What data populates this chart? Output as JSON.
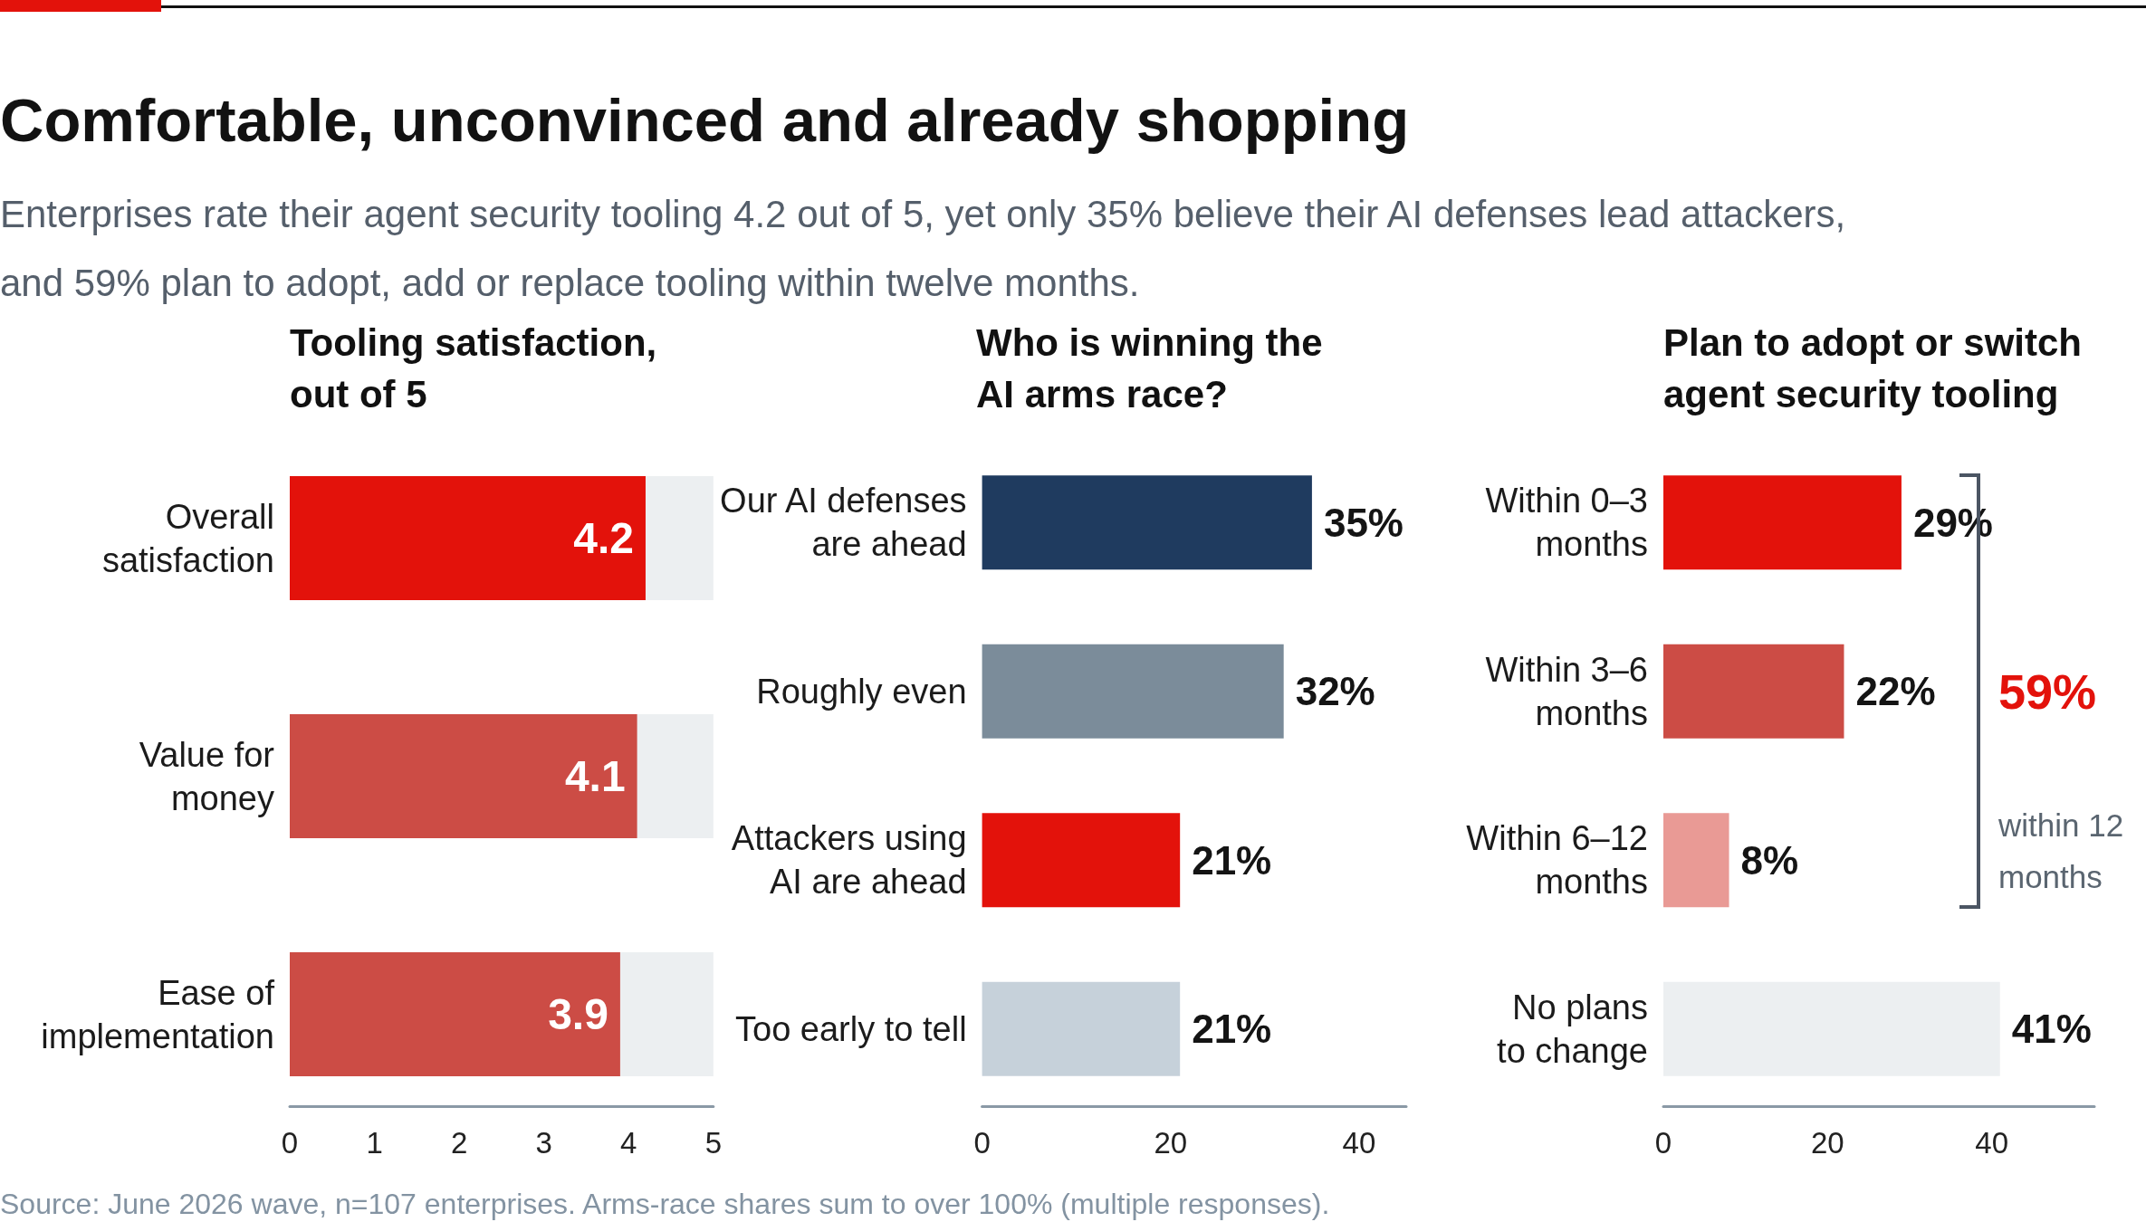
{
  "chart_data": [
    {
      "type": "other",
      "title": "Comfortable, unconvinced and already shopping",
      "subtitle": "Enterprises rate their agent security tooling 4.2 out of 5, yet only 35% believe their AI defenses lead attackers,\nand 59% plan to adopt, add or replace tooling within twelve months.",
      "annotations": [
        "Source: June 2026 wave, n=107 enterprises. Arms-race shares sum to over 100% (multiple responses)."
      ]
    },
    {
      "type": "bar",
      "orientation": "horizontal",
      "title": "Tooling satisfaction,\nout of 5",
      "categories": [
        "Overall\nsatisfaction",
        "Value for\nmoney",
        "Ease of\nimplementation"
      ],
      "values": [
        4.2,
        4.1,
        3.9
      ],
      "colors": [
        "#e3120b",
        "#cc4c45",
        "#cc4c45"
      ],
      "xlim": [
        0,
        5
      ],
      "xticks": [
        0,
        1,
        2,
        3,
        4,
        5
      ],
      "data_labels": true
    },
    {
      "type": "bar",
      "orientation": "horizontal",
      "title": "Who is winning the\nAI arms race?",
      "categories": [
        "Our AI defenses\nare ahead",
        "Roughly even",
        "Attackers using\nAI are ahead",
        "Too early to tell"
      ],
      "values": [
        35,
        32,
        21,
        21
      ],
      "value_labels": [
        "35%",
        "32%",
        "21%",
        "21%"
      ],
      "colors": [
        "#1f3b5f",
        "#7b8c9a",
        "#e3120b",
        "#c6d1da"
      ],
      "xlim": [
        0,
        45
      ],
      "xticks": [
        0,
        20,
        40
      ]
    },
    {
      "type": "bar",
      "orientation": "horizontal",
      "title": "Plan to adopt or switch\nagent security tooling",
      "categories": [
        "Within 0–3\nmonths",
        "Within 3–6\nmonths",
        "Within 6–12\nmonths",
        "No plans\nto change"
      ],
      "values": [
        29,
        22,
        8,
        41
      ],
      "value_labels": [
        "29%",
        "22%",
        "8%",
        "41%"
      ],
      "colors": [
        "#e3120b",
        "#cc4c45",
        "#e99a95",
        "#eceff1"
      ],
      "xlim": [
        0,
        52.5
      ],
      "xticks": [
        0,
        20,
        40
      ],
      "annotations": [
        "59%",
        "within 12\nmonths"
      ]
    }
  ]
}
